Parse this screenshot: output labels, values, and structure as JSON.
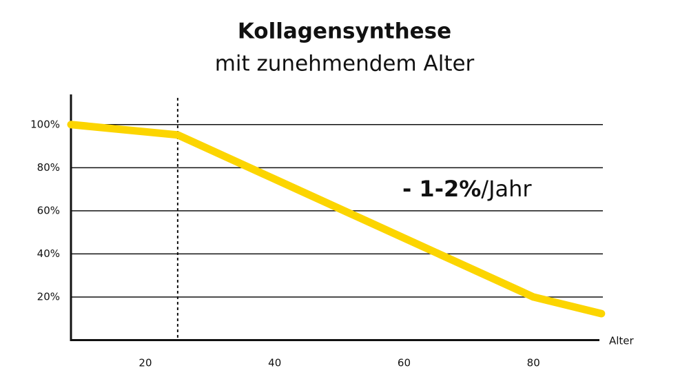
{
  "chart_data": {
    "type": "line",
    "title": "Kollagensynthese",
    "subtitle": "mit zunehmendem Alter",
    "x_label": "Alter",
    "annotation": {
      "strong": "- 1-2%",
      "rest": "/Jahr"
    },
    "x": [
      8.5,
      25,
      80,
      90.5
    ],
    "values": [
      100,
      95.2,
      20,
      12.3
    ],
    "color": "#fcd500",
    "reference_line_x": 25,
    "xlim": [
      8.5,
      91
    ],
    "xticks": [
      20,
      40,
      60,
      80
    ],
    "ylim": [
      0,
      114
    ],
    "yticks": [
      {
        "value": 20,
        "label": "20%"
      },
      {
        "value": 40,
        "label": "40%"
      },
      {
        "value": 60,
        "label": "60%"
      },
      {
        "value": 80,
        "label": "80%"
      },
      {
        "value": 100,
        "label": "100%"
      }
    ],
    "grid": true
  }
}
